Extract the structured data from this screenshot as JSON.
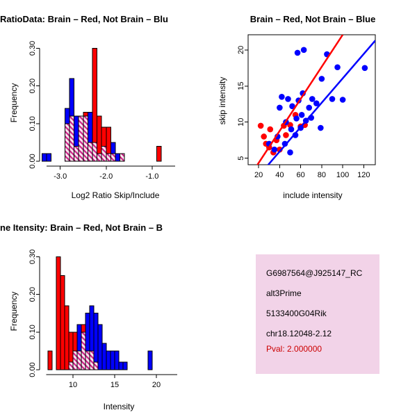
{
  "colors": {
    "red": "#FF0000",
    "blue": "#0000FF",
    "axis": "#000000",
    "hatch_line": "#CC2288",
    "hatch_bg": "#F8E8F0",
    "info_box_bg": "#F2D3E8",
    "pval": "#CC0000"
  },
  "chart_data": [
    {
      "id": "hist_ratio",
      "type": "histogram_overlay",
      "title": "RatioData: Brain – Red, Not Brain – Blu",
      "xlabel": "Log2 Ratio Skip/Include",
      "ylabel": "Frequency",
      "xlim": [
        -3.45,
        -0.15
      ],
      "ylim": [
        0,
        0.31
      ],
      "axis_span": [
        -3.3,
        -0.5
      ],
      "xticks": [
        -3.0,
        -2.0,
        -1.0
      ],
      "xtick_labels": [
        "-3.0",
        "-2.0",
        "-1.0"
      ],
      "yticks": [
        0,
        0.1,
        0.2,
        0.3
      ],
      "ytick_labels": [
        "0.00",
        "0.10",
        "0.20",
        "0.30"
      ],
      "bin_width": 0.1,
      "series_names": {
        "red": "Brain",
        "blue": "Not Brain"
      },
      "bins": [
        {
          "x": -3.4,
          "red": 0,
          "blue": 0.02
        },
        {
          "x": -3.3,
          "red": 0,
          "blue": 0.02
        },
        {
          "x": -2.9,
          "red": 0.1,
          "blue": 0.14
        },
        {
          "x": -2.8,
          "red": 0.12,
          "blue": 0.22
        },
        {
          "x": -2.7,
          "red": 0.04,
          "blue": 0.12
        },
        {
          "x": -2.6,
          "red": 0.12,
          "blue": 0.12
        },
        {
          "x": -2.5,
          "red": 0.13,
          "blue": 0.12
        },
        {
          "x": -2.4,
          "red": 0.05,
          "blue": 0.13
        },
        {
          "x": -2.3,
          "red": 0.3,
          "blue": 0.05
        },
        {
          "x": -2.2,
          "red": 0.12,
          "blue": 0.02
        },
        {
          "x": -2.1,
          "red": 0.09,
          "blue": 0.04
        },
        {
          "x": -2.0,
          "red": 0.09,
          "blue": 0.02
        },
        {
          "x": -1.9,
          "red": 0.02,
          "blue": 0.05
        },
        {
          "x": -1.8,
          "red": 0,
          "blue": 0.02
        },
        {
          "x": -1.7,
          "red": 0.02,
          "blue": 0.02
        },
        {
          "x": -0.9,
          "red": 0.04,
          "blue": 0
        }
      ]
    },
    {
      "id": "scatter",
      "type": "scatter",
      "title": "Brain – Red, Not Brain – Blue",
      "xlabel": "include intensity",
      "ylabel": "skip intensity",
      "xlim": [
        10,
        131
      ],
      "ylim": [
        4.1,
        22.1
      ],
      "xticks": [
        20,
        40,
        60,
        80,
        100,
        120
      ],
      "xtick_labels": [
        "20",
        "40",
        "60",
        "80",
        "100",
        "120"
      ],
      "yticks": [
        5,
        10,
        15,
        20
      ],
      "ytick_labels": [
        "5",
        "10",
        "15",
        "20"
      ],
      "series": [
        {
          "name": "Brain",
          "color": "red",
          "points": [
            [
              22,
              9.5
            ],
            [
              25,
              8
            ],
            [
              27,
              7
            ],
            [
              30,
              6.5
            ],
            [
              31,
              9
            ],
            [
              34,
              5.8
            ],
            [
              37,
              7.5
            ],
            [
              40,
              6.2
            ],
            [
              44,
              9.5
            ],
            [
              46,
              8.2
            ],
            [
              50,
              9.6
            ],
            [
              55,
              11
            ],
            [
              60,
              9.4
            ],
            [
              64,
              9.6
            ]
          ]
        },
        {
          "name": "Not Brain",
          "color": "blue",
          "points": [
            [
              30,
              7
            ],
            [
              35,
              6.2
            ],
            [
              38,
              8
            ],
            [
              40,
              12
            ],
            [
              42,
              13.5
            ],
            [
              45,
              7
            ],
            [
              46,
              10
            ],
            [
              48,
              13.2
            ],
            [
              50,
              5.8
            ],
            [
              51,
              9
            ],
            [
              52,
              12.2
            ],
            [
              55,
              8.2
            ],
            [
              56,
              10.5
            ],
            [
              57,
              19.6
            ],
            [
              58,
              13
            ],
            [
              60,
              9.2
            ],
            [
              61,
              11
            ],
            [
              62,
              14
            ],
            [
              63,
              20
            ],
            [
              65,
              10.2
            ],
            [
              68,
              12
            ],
            [
              70,
              10.6
            ],
            [
              71,
              13.2
            ],
            [
              75,
              12.6
            ],
            [
              79,
              9.2
            ],
            [
              80,
              16
            ],
            [
              85,
              19.4
            ],
            [
              90,
              13.2
            ],
            [
              95,
              17.6
            ],
            [
              100,
              13.1
            ],
            [
              121,
              17.5
            ]
          ]
        }
      ],
      "fit_lines": [
        {
          "color": "red",
          "x1": 18,
          "y1": 3.9,
          "x2": 100,
          "y2": 22.1
        },
        {
          "color": "blue",
          "x1": 28,
          "y1": 3.9,
          "x2": 131,
          "y2": 21.3
        }
      ]
    },
    {
      "id": "hist_intensity",
      "type": "histogram_overlay",
      "title": "ne Itensity: Brain – Red, Not Brain – B",
      "xlabel": "Intensity",
      "ylabel": "Frequency",
      "xlim": [
        6,
        25
      ],
      "ylim": [
        0,
        0.31
      ],
      "axis_span": [
        6.8,
        22.5
      ],
      "xticks": [
        10,
        15,
        20
      ],
      "xtick_labels": [
        "10",
        "15",
        "20"
      ],
      "yticks": [
        0,
        0.1,
        0.2,
        0.3
      ],
      "ytick_labels": [
        "0.00",
        "0.10",
        "0.20",
        "0.30"
      ],
      "bin_width": 0.5,
      "series_names": {
        "red": "Brain",
        "blue": "Not Brain"
      },
      "bins": [
        {
          "x": 7.0,
          "red": 0.05,
          "blue": 0
        },
        {
          "x": 8.0,
          "red": 0.3,
          "blue": 0
        },
        {
          "x": 8.5,
          "red": 0.25,
          "blue": 0
        },
        {
          "x": 9.0,
          "red": 0.17,
          "blue": 0
        },
        {
          "x": 9.5,
          "red": 0.1,
          "blue": 0.02
        },
        {
          "x": 10.0,
          "red": 0.1,
          "blue": 0.05
        },
        {
          "x": 10.5,
          "red": 0.05,
          "blue": 0.12
        },
        {
          "x": 11.0,
          "red": 0.12,
          "blue": 0.1
        },
        {
          "x": 11.5,
          "red": 0.05,
          "blue": 0.15
        },
        {
          "x": 12.0,
          "red": 0.05,
          "blue": 0.17
        },
        {
          "x": 12.5,
          "red": 0.02,
          "blue": 0.15
        },
        {
          "x": 13.0,
          "red": 0,
          "blue": 0.12
        },
        {
          "x": 13.5,
          "red": 0,
          "blue": 0.07
        },
        {
          "x": 14.0,
          "red": 0,
          "blue": 0.05
        },
        {
          "x": 14.5,
          "red": 0,
          "blue": 0.05
        },
        {
          "x": 15.0,
          "red": 0,
          "blue": 0.05
        },
        {
          "x": 15.5,
          "red": 0,
          "blue": 0.02
        },
        {
          "x": 16.0,
          "red": 0,
          "blue": 0.02
        },
        {
          "x": 19.0,
          "red": 0,
          "blue": 0.05
        }
      ]
    }
  ],
  "info_box": {
    "lines": [
      {
        "text": "G6987564@J925147_RC",
        "emphasis": false
      },
      {
        "text": "alt3Prime",
        "emphasis": false
      },
      {
        "text": "5133400G04Rik",
        "emphasis": false
      },
      {
        "text": "chr18.12048-2.12",
        "emphasis": false
      },
      {
        "text": "Pval: 2.000000",
        "emphasis": true
      }
    ]
  }
}
